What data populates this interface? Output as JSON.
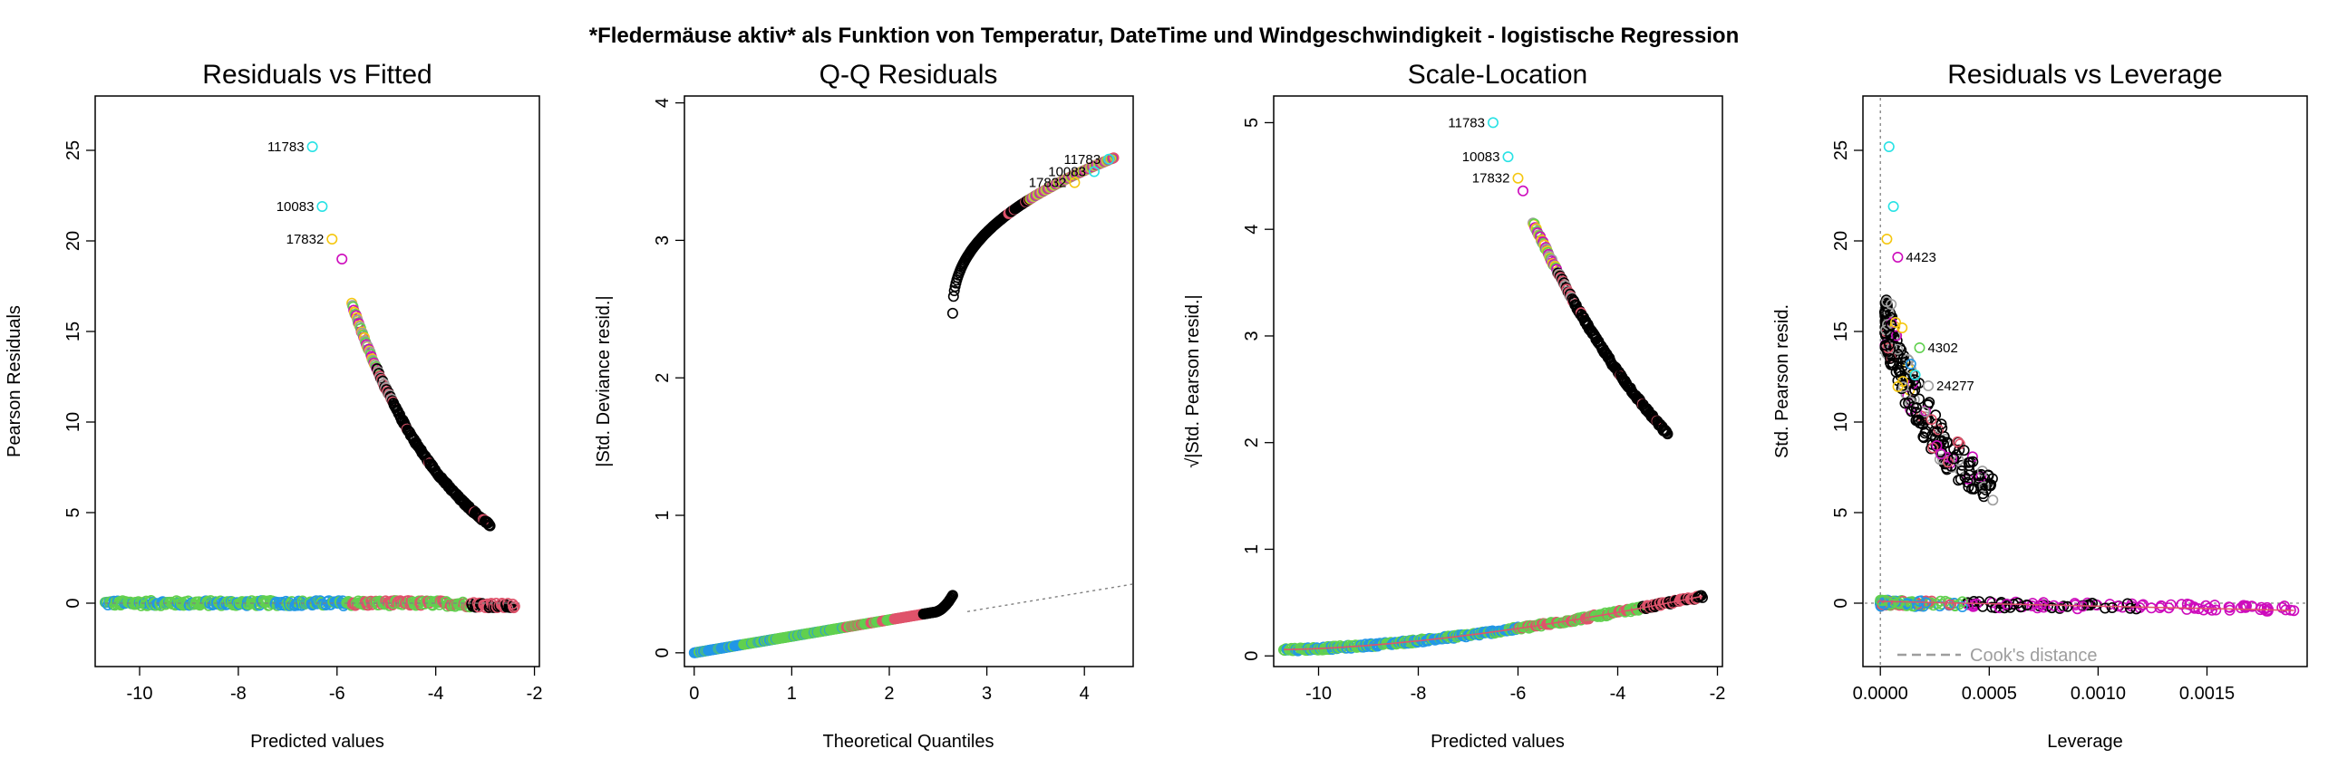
{
  "figure": {
    "main_title": "*Fledermäuse aktiv* als Funktion von Temperatur, DateTime und Windgeschwindigkeit - logistische Regression"
  },
  "colors": {
    "black": "#000000",
    "red": "#DF536B",
    "green": "#61D04F",
    "blue": "#2297E6",
    "cyan": "#28E2E5",
    "magenta": "#CD0BBC",
    "yellow": "#F5C710",
    "gray": "#9E9E9E",
    "dotted": "#808080"
  },
  "chart_data": [
    {
      "type": "scatter",
      "title": "Residuals vs Fitted",
      "xlabel": "Predicted values",
      "ylabel": "Pearson Residuals",
      "xlim": [
        -10.9,
        -1.9
      ],
      "ylim": [
        -3.5,
        28
      ],
      "xticks": [
        -10,
        -8,
        -6,
        -4,
        -2
      ],
      "yticks": [
        0,
        5,
        10,
        15,
        20,
        25
      ],
      "labels": [
        {
          "id": "11783",
          "x": -6.5,
          "y": 25.2,
          "color": "cyan"
        },
        {
          "id": "10083",
          "x": -6.3,
          "y": 21.9,
          "color": "cyan"
        },
        {
          "id": "17832",
          "x": -6.1,
          "y": 20.1,
          "color": "yellow"
        }
      ],
      "extra_points": [
        {
          "x": -5.9,
          "y": 19.0,
          "color": "magenta"
        }
      ],
      "curve": {
        "x_start": -5.7,
        "y_start": 16.5,
        "x_end": -2.9,
        "y_end": 4.3
      },
      "baseline": {
        "x_start": -10.7,
        "x_end": -2.4,
        "y": 0
      }
    },
    {
      "type": "scatter",
      "title": "Q-Q Residuals",
      "xlabel": "Theoretical Quantiles",
      "ylabel": "|Std. Deviance resid.|",
      "xlim": [
        -0.1,
        4.5
      ],
      "ylim": [
        -0.1,
        4.05
      ],
      "xticks": [
        0,
        1,
        2,
        3,
        4
      ],
      "yticks": [
        0,
        1,
        2,
        3,
        4
      ],
      "labels": [
        {
          "id": "11783",
          "x": 4.25,
          "y": 3.59,
          "color": "cyan"
        },
        {
          "id": "10083",
          "x": 4.1,
          "y": 3.5,
          "color": "cyan"
        },
        {
          "id": "17832",
          "x": 3.9,
          "y": 3.42,
          "color": "yellow"
        }
      ],
      "lower_curve": {
        "x_start": 0.0,
        "y_start": 0.0,
        "x_end": 2.65,
        "y_end": 0.42
      },
      "upper_curve": {
        "x_start": 2.65,
        "y_start": 2.47,
        "x_end": 4.3,
        "y_end": 3.6
      },
      "reference_line": {
        "x_start": 2.8,
        "y_start": 0.3,
        "x_end": 4.5,
        "y_end": 0.5
      }
    },
    {
      "type": "scatter",
      "title": "Scale-Location",
      "xlabel": "Predicted values",
      "ylabel": "√|Std. Pearson resid.|",
      "xlim": [
        -10.9,
        -1.9
      ],
      "ylim": [
        -0.1,
        5.25
      ],
      "xticks": [
        -10,
        -8,
        -6,
        -4,
        -2
      ],
      "yticks": [
        0,
        1,
        2,
        3,
        4,
        5
      ],
      "labels": [
        {
          "id": "11783",
          "x": -6.5,
          "y": 5.0,
          "color": "cyan"
        },
        {
          "id": "10083",
          "x": -6.2,
          "y": 4.68,
          "color": "cyan"
        },
        {
          "id": "17832",
          "x": -6.0,
          "y": 4.48,
          "color": "yellow"
        }
      ],
      "extra_points": [
        {
          "x": -5.9,
          "y": 4.36,
          "color": "magenta"
        }
      ],
      "curve": {
        "x_start": -5.7,
        "y_start": 4.07,
        "x_end": -3.0,
        "y_end": 2.08
      },
      "lower_curve": {
        "x_start": -10.7,
        "y_start": 0.06,
        "x_end": -2.3,
        "y_end": 0.56
      }
    },
    {
      "type": "scatter",
      "title": "Residuals vs Leverage",
      "xlabel": "Leverage",
      "ylabel": "Std. Pearson resid.",
      "xlim": [
        -8e-05,
        0.00196
      ],
      "ylim": [
        -3.5,
        28
      ],
      "xticks": [
        0.0,
        0.0005,
        0.001,
        0.0015
      ],
      "xtick_labels": [
        "0.0000",
        "0.0005",
        "0.0010",
        "0.0015"
      ],
      "yticks": [
        0,
        5,
        10,
        15,
        20,
        25
      ],
      "labels": [
        {
          "id": "4423",
          "x": 8e-05,
          "y": 19.1,
          "color": "magenta"
        },
        {
          "id": "4302",
          "x": 0.00018,
          "y": 14.1,
          "color": "green"
        },
        {
          "id": "24277",
          "x": 0.00022,
          "y": 12.0,
          "color": "gray"
        }
      ],
      "legend": {
        "label": "Cook's distance",
        "position": "bottom-left"
      }
    }
  ]
}
